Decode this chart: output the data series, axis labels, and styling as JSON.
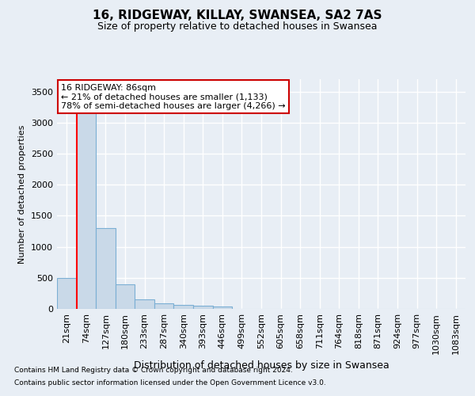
{
  "title_line1": "16, RIDGEWAY, KILLAY, SWANSEA, SA2 7AS",
  "title_line2": "Size of property relative to detached houses in Swansea",
  "xlabel": "Distribution of detached houses by size in Swansea",
  "ylabel": "Number of detached properties",
  "footnote1": "Contains HM Land Registry data © Crown copyright and database right 2024.",
  "footnote2": "Contains public sector information licensed under the Open Government Licence v3.0.",
  "categories": [
    "21sqm",
    "74sqm",
    "127sqm",
    "180sqm",
    "233sqm",
    "287sqm",
    "340sqm",
    "393sqm",
    "446sqm",
    "499sqm",
    "552sqm",
    "605sqm",
    "658sqm",
    "711sqm",
    "764sqm",
    "818sqm",
    "871sqm",
    "924sqm",
    "977sqm",
    "1030sqm",
    "1083sqm"
  ],
  "values": [
    500,
    3400,
    1300,
    390,
    155,
    90,
    60,
    50,
    40,
    0,
    0,
    0,
    0,
    0,
    0,
    0,
    0,
    0,
    0,
    0,
    0
  ],
  "bar_color": "#c9d9e8",
  "bar_edge_color": "#7bafd4",
  "red_line_x": 0.5,
  "ylim": [
    0,
    3700
  ],
  "yticks": [
    0,
    500,
    1000,
    1500,
    2000,
    2500,
    3000,
    3500
  ],
  "annotation_text": "16 RIDGEWAY: 86sqm\n← 21% of detached houses are smaller (1,133)\n78% of semi-detached houses are larger (4,266) →",
  "annotation_box_facecolor": "#ffffff",
  "annotation_box_edgecolor": "#cc0000",
  "background_color": "#e8eef5",
  "plot_bg_color": "#e8eef5",
  "grid_color": "#ffffff",
  "title_fontsize": 11,
  "subtitle_fontsize": 9,
  "xlabel_fontsize": 9,
  "ylabel_fontsize": 8,
  "tick_fontsize": 8,
  "annotation_fontsize": 8,
  "footnote_fontsize": 6.5
}
